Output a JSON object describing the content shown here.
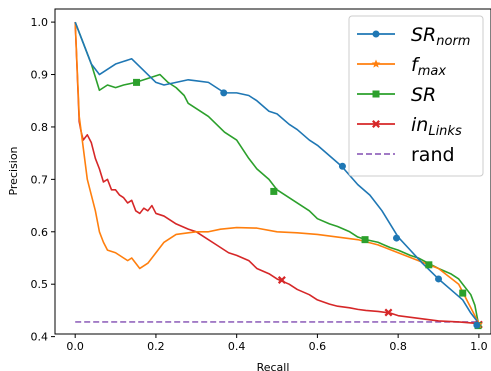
{
  "chart_data": {
    "type": "line",
    "title": "",
    "xlabel": "Recall",
    "ylabel": "Precision",
    "xlim": [
      -0.05,
      1.03
    ],
    "ylim": [
      0.405,
      1.025
    ],
    "xticks": [
      0.0,
      0.2,
      0.4,
      0.6,
      0.8,
      1.0
    ],
    "xtick_labels": [
      "0.0",
      "0.2",
      "0.4",
      "0.6",
      "0.8",
      "1.0"
    ],
    "yticks": [
      0.4,
      0.5,
      0.6,
      0.7,
      0.8,
      0.9,
      1.0
    ],
    "ytick_labels": [
      "0.4",
      "0.5",
      "0.6",
      "0.7",
      "0.8",
      "0.9",
      "1.0"
    ],
    "grid": false,
    "legend_position": "top-right",
    "series": [
      {
        "name": "SR",
        "name_sub": "norm",
        "color": "#1f77b4",
        "marker": "circle",
        "x": [
          0.0,
          0.02,
          0.04,
          0.06,
          0.08,
          0.1,
          0.12,
          0.14,
          0.16,
          0.18,
          0.2,
          0.22,
          0.25,
          0.28,
          0.3,
          0.33,
          0.35,
          0.37,
          0.4,
          0.43,
          0.45,
          0.48,
          0.5,
          0.53,
          0.55,
          0.58,
          0.6,
          0.63,
          0.66,
          0.7,
          0.73,
          0.76,
          0.8,
          0.83,
          0.86,
          0.9,
          0.93,
          0.96,
          0.98,
          1.0
        ],
        "y": [
          1.0,
          0.96,
          0.92,
          0.9,
          0.91,
          0.92,
          0.925,
          0.93,
          0.915,
          0.9,
          0.885,
          0.88,
          0.885,
          0.89,
          0.888,
          0.885,
          0.875,
          0.865,
          0.865,
          0.86,
          0.85,
          0.83,
          0.825,
          0.805,
          0.795,
          0.775,
          0.765,
          0.745,
          0.725,
          0.69,
          0.67,
          0.64,
          0.59,
          0.565,
          0.54,
          0.51,
          0.49,
          0.47,
          0.445,
          0.425
        ],
        "marker_x": [
          0.368,
          0.662,
          0.796,
          0.9,
          0.995
        ],
        "marker_y": [
          0.865,
          0.725,
          0.588,
          0.51,
          0.422
        ]
      },
      {
        "name": "f",
        "name_sub": "max",
        "color": "#ff7f0e",
        "marker": "star",
        "x": [
          0.0,
          0.01,
          0.02,
          0.03,
          0.04,
          0.05,
          0.06,
          0.07,
          0.08,
          0.1,
          0.11,
          0.12,
          0.13,
          0.14,
          0.15,
          0.16,
          0.18,
          0.2,
          0.22,
          0.25,
          0.28,
          0.3,
          0.33,
          0.36,
          0.4,
          0.45,
          0.5,
          0.55,
          0.6,
          0.65,
          0.7,
          0.75,
          0.8,
          0.85,
          0.9,
          0.95,
          1.0
        ],
        "y": [
          1.0,
          0.82,
          0.76,
          0.7,
          0.67,
          0.64,
          0.6,
          0.58,
          0.565,
          0.56,
          0.555,
          0.55,
          0.545,
          0.55,
          0.54,
          0.53,
          0.54,
          0.56,
          0.58,
          0.595,
          0.598,
          0.6,
          0.6,
          0.605,
          0.608,
          0.607,
          0.6,
          0.598,
          0.595,
          0.59,
          0.585,
          0.575,
          0.56,
          0.545,
          0.53,
          0.5,
          0.425
        ],
        "marker_x": [
          0.999
        ],
        "marker_y": [
          0.423
        ]
      },
      {
        "name": "SR",
        "name_sub": "",
        "color": "#2ca02c",
        "marker": "square",
        "x": [
          0.0,
          0.02,
          0.04,
          0.05,
          0.06,
          0.08,
          0.1,
          0.12,
          0.15,
          0.17,
          0.19,
          0.21,
          0.23,
          0.25,
          0.27,
          0.28,
          0.3,
          0.33,
          0.35,
          0.37,
          0.4,
          0.43,
          0.45,
          0.48,
          0.5,
          0.53,
          0.55,
          0.58,
          0.6,
          0.63,
          0.65,
          0.68,
          0.7,
          0.72,
          0.75,
          0.78,
          0.8,
          0.83,
          0.85,
          0.88,
          0.9,
          0.93,
          0.95,
          0.96,
          0.97,
          0.98,
          0.99,
          1.0
        ],
        "y": [
          1.0,
          0.96,
          0.92,
          0.895,
          0.87,
          0.88,
          0.875,
          0.88,
          0.885,
          0.89,
          0.895,
          0.9,
          0.885,
          0.875,
          0.86,
          0.845,
          0.835,
          0.82,
          0.805,
          0.79,
          0.775,
          0.74,
          0.72,
          0.7,
          0.68,
          0.665,
          0.655,
          0.64,
          0.625,
          0.615,
          0.61,
          0.6,
          0.59,
          0.585,
          0.58,
          0.57,
          0.565,
          0.555,
          0.55,
          0.538,
          0.53,
          0.52,
          0.51,
          0.5,
          0.49,
          0.48,
          0.46,
          0.42
        ],
        "marker_x": [
          0.152,
          0.492,
          0.718,
          0.876,
          0.96,
          0.998
        ],
        "marker_y": [
          0.885,
          0.677,
          0.585,
          0.537,
          0.483,
          0.421
        ]
      },
      {
        "name": "in",
        "name_sub": "Links",
        "color": "#d62728",
        "marker": "x",
        "x": [
          0.0,
          0.01,
          0.015,
          0.02,
          0.03,
          0.04,
          0.05,
          0.06,
          0.07,
          0.08,
          0.09,
          0.1,
          0.11,
          0.12,
          0.13,
          0.14,
          0.15,
          0.16,
          0.17,
          0.18,
          0.19,
          0.2,
          0.22,
          0.25,
          0.28,
          0.3,
          0.32,
          0.35,
          0.38,
          0.4,
          0.43,
          0.45,
          0.48,
          0.5,
          0.53,
          0.55,
          0.58,
          0.6,
          0.63,
          0.65,
          0.68,
          0.7,
          0.72,
          0.75,
          0.78,
          0.8,
          0.85,
          0.9,
          0.95,
          1.0
        ],
        "y": [
          1.0,
          0.81,
          0.79,
          0.775,
          0.785,
          0.77,
          0.74,
          0.72,
          0.695,
          0.7,
          0.68,
          0.68,
          0.67,
          0.665,
          0.655,
          0.66,
          0.64,
          0.635,
          0.645,
          0.64,
          0.65,
          0.635,
          0.63,
          0.615,
          0.605,
          0.6,
          0.59,
          0.575,
          0.56,
          0.555,
          0.545,
          0.53,
          0.52,
          0.51,
          0.5,
          0.49,
          0.48,
          0.47,
          0.462,
          0.458,
          0.455,
          0.452,
          0.45,
          0.448,
          0.445,
          0.44,
          0.435,
          0.43,
          0.428,
          0.425
        ],
        "marker_x": [
          0.512,
          0.776,
          1.0
        ],
        "marker_y": [
          0.508,
          0.446,
          0.423
        ]
      },
      {
        "name": "rand",
        "name_sub": "",
        "color": "#9467bd",
        "marker": "",
        "dashed": true,
        "x": [
          0.0,
          1.0
        ],
        "y": [
          0.428,
          0.428
        ],
        "marker_x": [],
        "marker_y": []
      }
    ]
  }
}
